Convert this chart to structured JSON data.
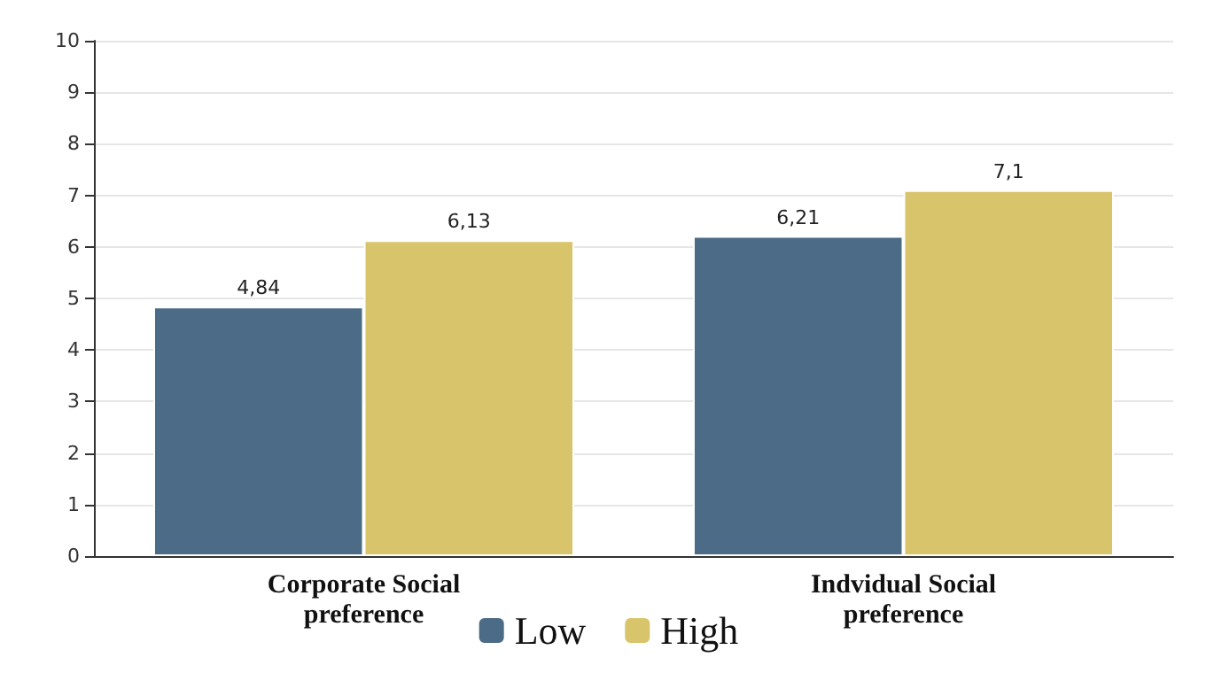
{
  "chart_data": {
    "type": "bar",
    "categories": [
      "Corporate Social\npreference",
      "Indvidual Social\npreference"
    ],
    "series": [
      {
        "name": "Low",
        "color": "#4b6b86",
        "values": [
          4.84,
          6.21
        ],
        "value_labels": [
          "4,84",
          "6,21"
        ]
      },
      {
        "name": "High",
        "color": "#d8c46b",
        "values": [
          6.13,
          7.1
        ],
        "value_labels": [
          "6,13",
          "7,1"
        ]
      }
    ],
    "ylim": [
      0,
      10
    ],
    "yticks": [
      0,
      1,
      2,
      3,
      4,
      5,
      6,
      7,
      8,
      9,
      10
    ],
    "grid": "y",
    "legend": "bottom"
  }
}
